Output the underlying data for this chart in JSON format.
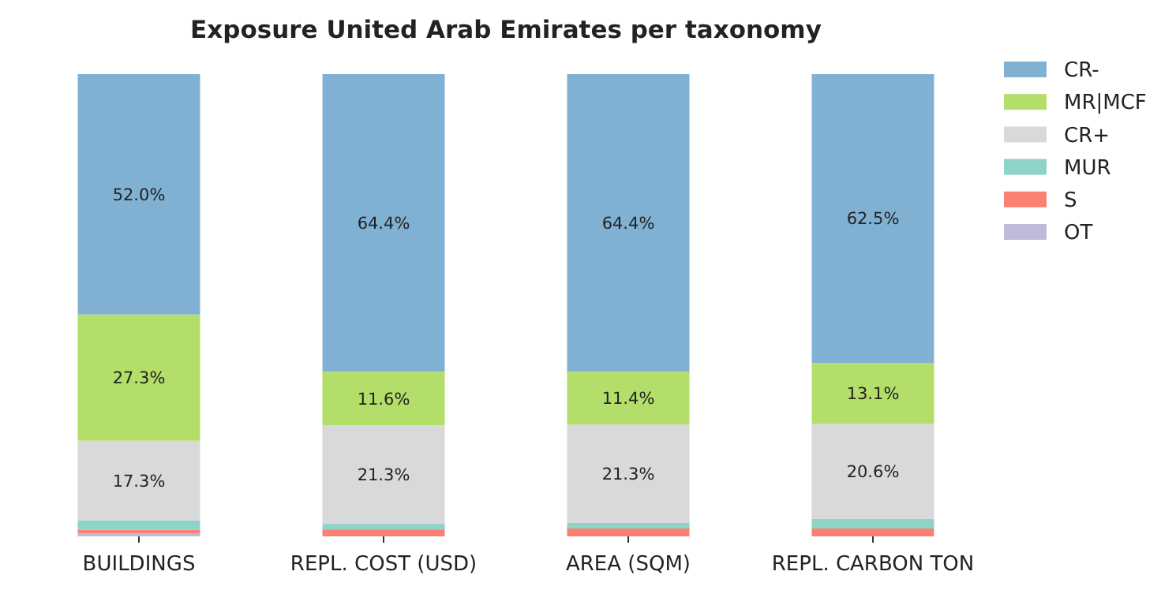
{
  "chart_data": {
    "type": "bar",
    "title": "Exposure United Arab Emirates per taxonomy",
    "stacked": true,
    "legend": "right",
    "categories": [
      "BUILDINGS",
      "REPL. COST (USD)",
      "AREA (SQM)",
      "REPL. CARBON TON"
    ],
    "series": [
      {
        "name": "OT",
        "color": "#bebada",
        "values": [
          0.7,
          0,
          0,
          0
        ],
        "value_labels": [
          null,
          null,
          null,
          null
        ]
      },
      {
        "name": "S",
        "color": "#fb8072",
        "values": [
          0.7,
          1.5,
          1.7,
          1.7
        ],
        "value_labels": [
          null,
          null,
          null,
          null
        ]
      },
      {
        "name": "MUR",
        "color": "#8dd3c7",
        "values": [
          2.0,
          1.2,
          1.2,
          2.1
        ],
        "value_labels": [
          null,
          null,
          null,
          null
        ]
      },
      {
        "name": "CR+",
        "color": "#d9d9d9",
        "values": [
          17.3,
          21.3,
          21.3,
          20.6
        ],
        "value_labels": [
          "17.3%",
          "21.3%",
          "21.3%",
          "20.6%"
        ]
      },
      {
        "name": "MR|MCF",
        "color": "#b3de69",
        "values": [
          27.3,
          11.6,
          11.4,
          13.1
        ],
        "value_labels": [
          "27.3%",
          "11.6%",
          "11.4%",
          "13.1%"
        ]
      },
      {
        "name": "CR-",
        "color": "#80b1d3",
        "values": [
          52.0,
          64.4,
          64.4,
          62.5
        ],
        "value_labels": [
          "52.0%",
          "64.4%",
          "64.4%",
          "62.5%"
        ]
      }
    ],
    "ylim": [
      0,
      100
    ],
    "tick_labels": "x"
  }
}
